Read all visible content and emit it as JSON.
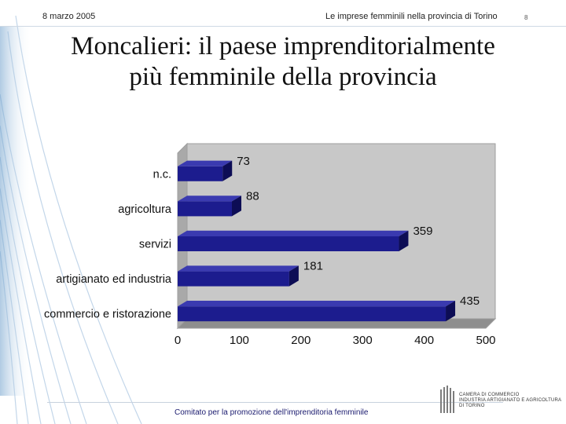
{
  "header": {
    "date": "8 marzo 2005",
    "subtitle": "Le imprese femminili nella provincia di Torino",
    "page_number": "8"
  },
  "slide_title_lines": [
    "Moncalieri: il paese imprenditorialmente",
    "più femminile della provincia"
  ],
  "chart_data": {
    "type": "bar",
    "orientation": "horizontal",
    "title": "",
    "xlabel": "",
    "ylabel": "",
    "categories": [
      "n.c.",
      "agricoltura",
      "servizi",
      "artigianato ed industria",
      "commercio e ristorazione"
    ],
    "values": [
      73,
      88,
      359,
      181,
      435
    ],
    "xlim": [
      0,
      500
    ],
    "xticks": [
      0,
      100,
      200,
      300,
      400,
      500
    ],
    "grid": false,
    "legend": "none",
    "bar_style": "3d",
    "colors": {
      "bar": "#1c1c8e",
      "bar_side": "#0d0d55",
      "plot_bg": "#c8c8c8",
      "frame": "#9e9e9e"
    }
  },
  "footer": {
    "text": "Comitato per la promozione dell'imprenditoria femminile"
  },
  "logo": {
    "lines": [
      "CAMERA DI COMMERCIO",
      "INDUSTRIA ARTIGIANATO E AGRICOLTURA",
      "DI TORINO"
    ]
  },
  "colors": {
    "accent": "#1a1a6e",
    "decor": "#8fb3d6"
  }
}
